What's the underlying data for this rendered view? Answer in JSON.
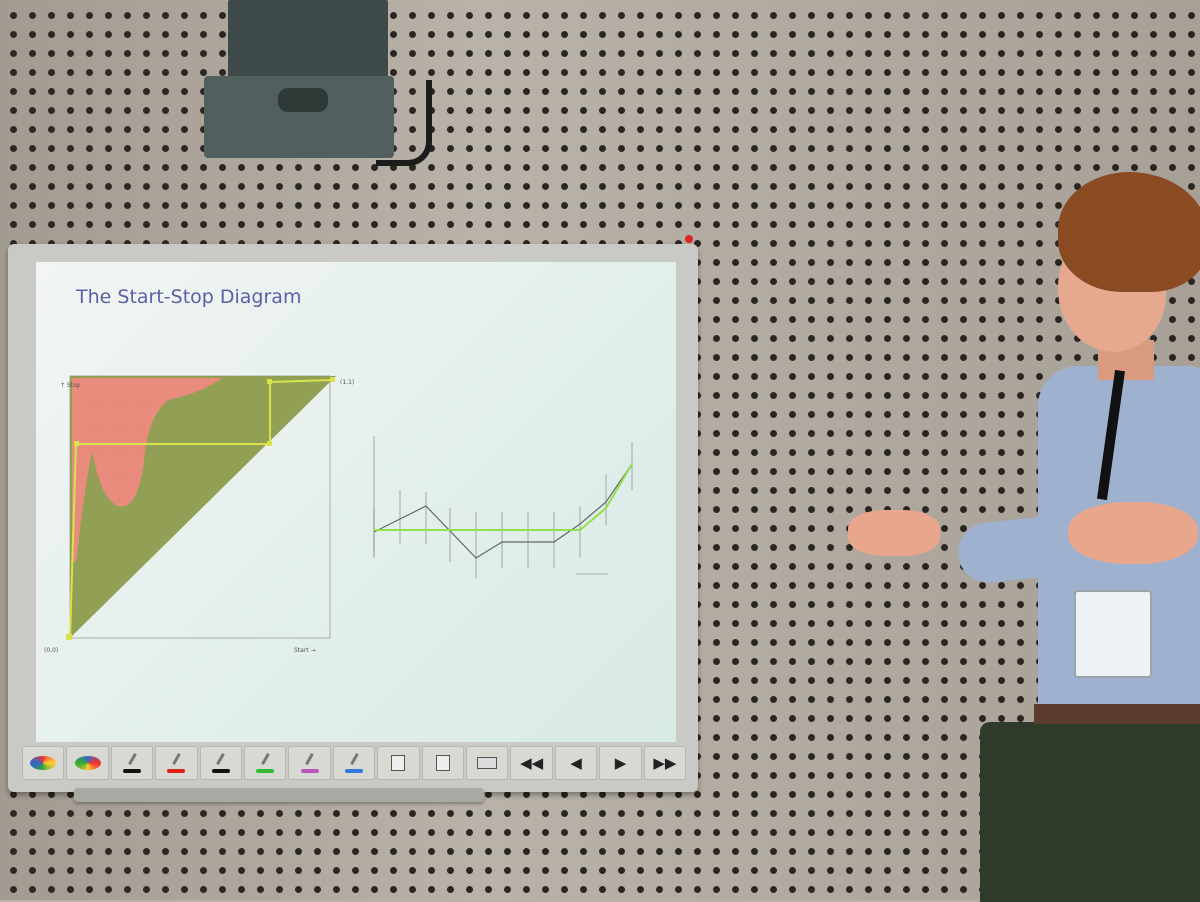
{
  "slide": {
    "title": "The Start-Stop Diagram",
    "diagram_labels": {
      "stop_axis": "↑ Stop",
      "start_axis": "Start →",
      "origin": "(0,0)",
      "corner": "(1,1)"
    }
  },
  "colors": {
    "accent_title": "#5a5fa6",
    "red_region": "#e98c7e",
    "green_region": "#8c9b4c",
    "path_yellow": "#d8e34a",
    "curve_green": "#8fe24a"
  },
  "toolbar": {
    "icons": [
      "palette-icon",
      "palette-icon",
      "pen-black-icon",
      "pen-red-icon",
      "pen-black-icon",
      "pen-green-icon",
      "pen-purple-icon",
      "pen-blue-icon",
      "copy-icon",
      "paste-icon",
      "print-icon"
    ],
    "nav": {
      "first": "◀◀",
      "prev": "◀",
      "next": "▶",
      "last": "▶▶"
    }
  }
}
